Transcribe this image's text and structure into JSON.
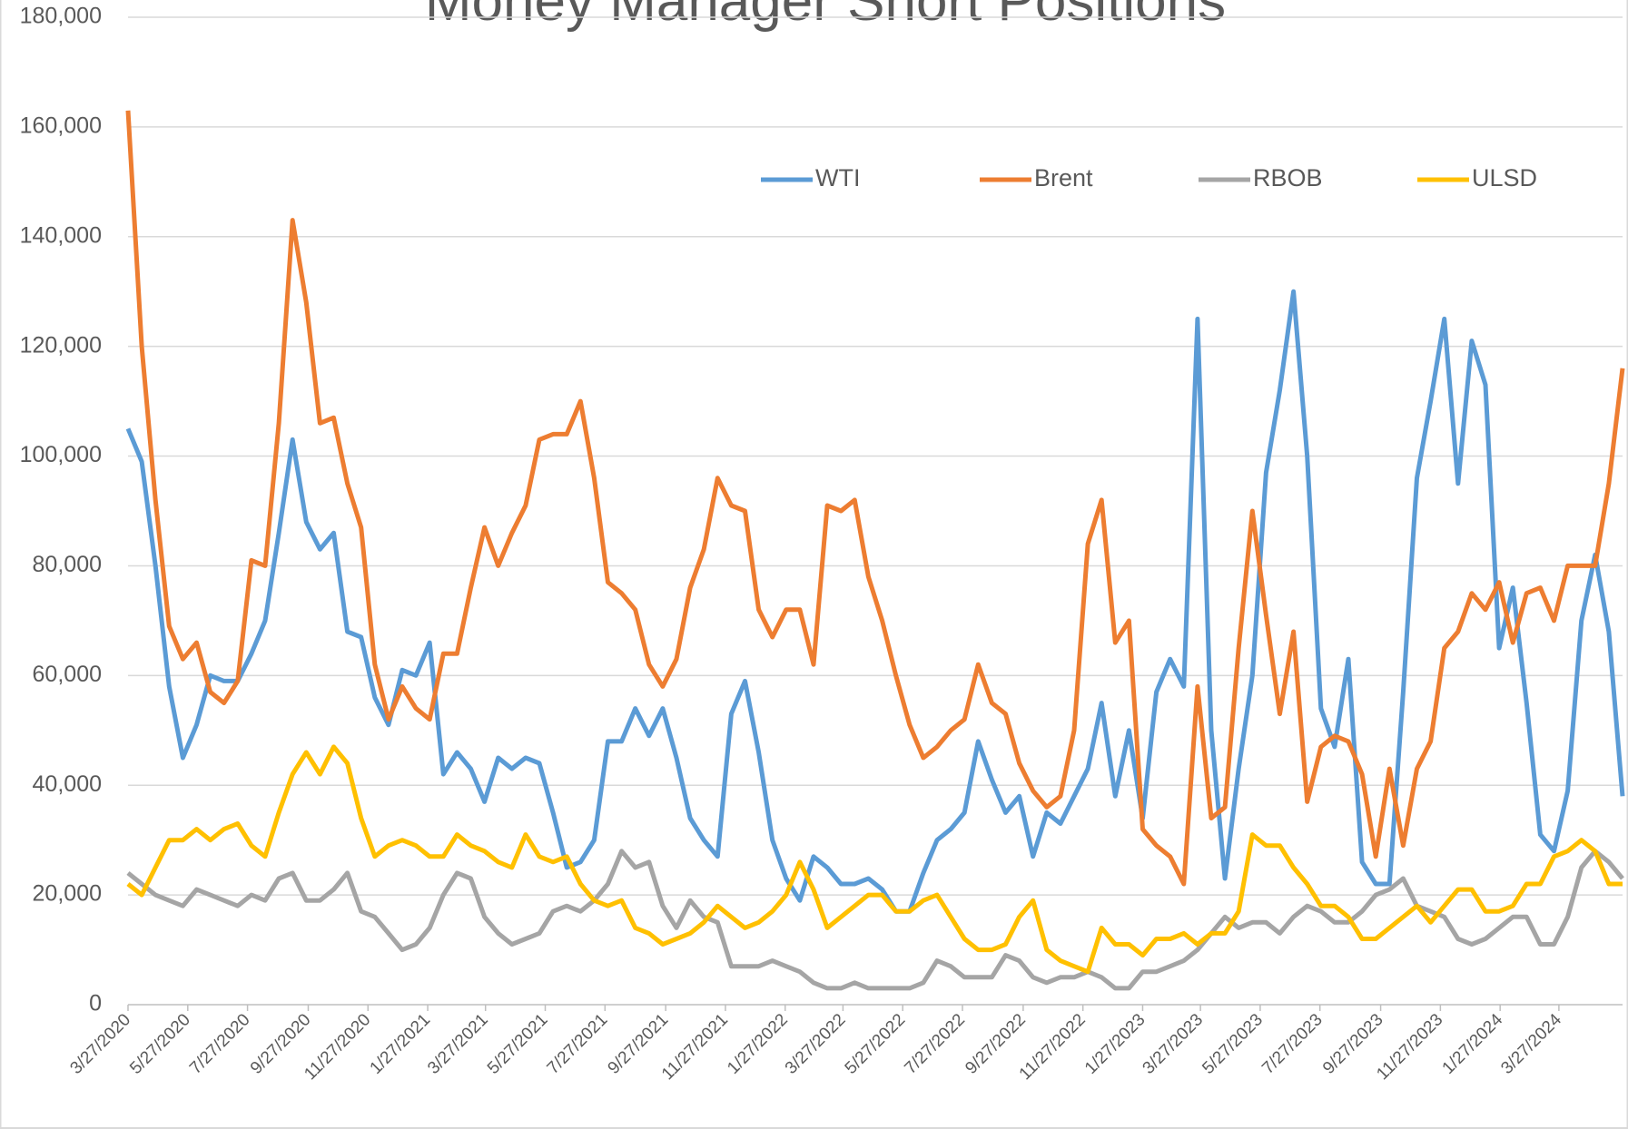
{
  "chart_data": {
    "type": "line",
    "title": "Money Manager Short Positions",
    "x": [
      "3/27/2020",
      "4/10/2020",
      "4/24/2020",
      "5/8/2020",
      "5/22/2020",
      "6/5/2020",
      "6/19/2020",
      "7/3/2020",
      "7/17/2020",
      "7/31/2020",
      "8/14/2020",
      "8/28/2020",
      "9/11/2020",
      "9/25/2020",
      "10/9/2020",
      "10/23/2020",
      "11/6/2020",
      "11/20/2020",
      "12/4/2020",
      "12/18/2020",
      "1/1/2021",
      "1/15/2021",
      "1/29/2021",
      "2/12/2021",
      "2/26/2021",
      "3/12/2021",
      "3/26/2021",
      "4/9/2021",
      "4/23/2021",
      "5/7/2021",
      "5/21/2021",
      "6/4/2021",
      "6/18/2021",
      "7/2/2021",
      "7/16/2021",
      "7/30/2021",
      "8/13/2021",
      "8/27/2021",
      "9/10/2021",
      "9/24/2021",
      "10/8/2021",
      "10/22/2021",
      "11/5/2021",
      "11/19/2021",
      "12/3/2021",
      "12/17/2021",
      "12/31/2021",
      "1/14/2022",
      "1/28/2022",
      "2/11/2022",
      "2/25/2022",
      "3/11/2022",
      "3/25/2022",
      "4/8/2022",
      "4/22/2022",
      "5/6/2022",
      "5/20/2022",
      "6/3/2022",
      "6/17/2022",
      "7/1/2022",
      "7/15/2022",
      "7/29/2022",
      "8/12/2022",
      "8/26/2022",
      "9/9/2022",
      "9/23/2022",
      "10/7/2022",
      "10/21/2022",
      "11/4/2022",
      "11/18/2022",
      "12/2/2022",
      "12/16/2022",
      "12/30/2022",
      "1/13/2023",
      "1/27/2023",
      "2/10/2023",
      "2/24/2023",
      "3/10/2023",
      "3/24/2023",
      "4/7/2023",
      "4/21/2023",
      "5/5/2023",
      "5/19/2023",
      "6/2/2023",
      "6/16/2023",
      "6/30/2023",
      "7/14/2023",
      "7/28/2023",
      "8/11/2023",
      "8/25/2023",
      "9/8/2023",
      "9/22/2023",
      "10/6/2023",
      "10/20/2023",
      "11/3/2023",
      "11/17/2023",
      "12/1/2023",
      "12/15/2023",
      "12/29/2023",
      "1/12/2024",
      "1/26/2024",
      "2/9/2024",
      "2/23/2024",
      "3/8/2024",
      "3/22/2024",
      "4/5/2024",
      "4/19/2024",
      "5/3/2024",
      "5/17/2024",
      "5/31/2024"
    ],
    "series": [
      {
        "name": "WTI",
        "color": "#5b9bd5",
        "values": [
          105000,
          99000,
          80000,
          58000,
          45000,
          51000,
          60000,
          59000,
          59000,
          64000,
          70000,
          86000,
          103000,
          88000,
          83000,
          86000,
          68000,
          67000,
          56000,
          51000,
          61000,
          60000,
          66000,
          42000,
          46000,
          43000,
          37000,
          45000,
          43000,
          45000,
          44000,
          35000,
          25000,
          26000,
          30000,
          48000,
          48000,
          54000,
          49000,
          54000,
          45000,
          34000,
          30000,
          27000,
          53000,
          59000,
          46000,
          30000,
          23000,
          19000,
          27000,
          25000,
          22000,
          22000,
          23000,
          21000,
          17000,
          17000,
          24000,
          30000,
          32000,
          35000,
          48000,
          41000,
          35000,
          38000,
          27000,
          35000,
          33000,
          38000,
          43000,
          55000,
          38000,
          50000,
          34000,
          57000,
          63000,
          58000,
          125000,
          50000,
          23000,
          43000,
          60000,
          97000,
          112000,
          130000,
          100000,
          54000,
          47000,
          63000,
          26000,
          22000,
          22000,
          57000,
          96000,
          110000,
          125000,
          95000,
          121000,
          113000,
          65000,
          76000,
          55000,
          31000,
          28000,
          39000,
          70000,
          82000,
          68000,
          38000
        ]
      },
      {
        "name": "Brent",
        "color": "#ed7d31",
        "values": [
          163000,
          120000,
          92000,
          69000,
          63000,
          66000,
          57000,
          55000,
          59000,
          81000,
          80000,
          106000,
          143000,
          128000,
          106000,
          107000,
          95000,
          87000,
          62000,
          52000,
          58000,
          54000,
          52000,
          64000,
          64000,
          76000,
          87000,
          80000,
          86000,
          91000,
          103000,
          104000,
          104000,
          110000,
          96000,
          77000,
          75000,
          72000,
          62000,
          58000,
          63000,
          76000,
          83000,
          96000,
          91000,
          90000,
          72000,
          67000,
          72000,
          72000,
          62000,
          91000,
          90000,
          92000,
          78000,
          70000,
          60000,
          51000,
          45000,
          47000,
          50000,
          52000,
          62000,
          55000,
          53000,
          44000,
          39000,
          36000,
          38000,
          50000,
          84000,
          92000,
          66000,
          70000,
          32000,
          29000,
          27000,
          22000,
          58000,
          34000,
          36000,
          65000,
          90000,
          71000,
          53000,
          68000,
          37000,
          47000,
          49000,
          48000,
          42000,
          27000,
          43000,
          29000,
          43000,
          48000,
          65000,
          68000,
          75000,
          72000,
          77000,
          66000,
          75000,
          76000,
          70000,
          80000,
          80000,
          80000,
          95000,
          116000
        ]
      },
      {
        "name": "RBOB",
        "color": "#a5a5a5",
        "values": [
          24000,
          22000,
          20000,
          19000,
          18000,
          21000,
          20000,
          19000,
          18000,
          20000,
          19000,
          23000,
          24000,
          19000,
          19000,
          21000,
          24000,
          17000,
          16000,
          13000,
          10000,
          11000,
          14000,
          20000,
          24000,
          23000,
          16000,
          13000,
          11000,
          12000,
          13000,
          17000,
          18000,
          17000,
          19000,
          22000,
          28000,
          25000,
          26000,
          18000,
          14000,
          19000,
          16000,
          15000,
          7000,
          7000,
          7000,
          8000,
          7000,
          6000,
          4000,
          3000,
          3000,
          4000,
          3000,
          3000,
          3000,
          3000,
          4000,
          8000,
          7000,
          5000,
          5000,
          5000,
          9000,
          8000,
          5000,
          4000,
          5000,
          5000,
          6000,
          5000,
          3000,
          3000,
          6000,
          6000,
          7000,
          8000,
          10000,
          13000,
          16000,
          14000,
          15000,
          15000,
          13000,
          16000,
          18000,
          17000,
          15000,
          15000,
          17000,
          20000,
          21000,
          23000,
          18000,
          17000,
          16000,
          12000,
          11000,
          12000,
          14000,
          16000,
          16000,
          11000,
          11000,
          16000,
          25000,
          28000,
          26000,
          23000
        ]
      },
      {
        "name": "ULSD",
        "color": "#ffc000",
        "values": [
          22000,
          20000,
          25000,
          30000,
          30000,
          32000,
          30000,
          32000,
          33000,
          29000,
          27000,
          35000,
          42000,
          46000,
          42000,
          47000,
          44000,
          34000,
          27000,
          29000,
          30000,
          29000,
          27000,
          27000,
          31000,
          29000,
          28000,
          26000,
          25000,
          31000,
          27000,
          26000,
          27000,
          22000,
          19000,
          18000,
          19000,
          14000,
          13000,
          11000,
          12000,
          13000,
          15000,
          18000,
          16000,
          14000,
          15000,
          17000,
          20000,
          26000,
          21000,
          14000,
          16000,
          18000,
          20000,
          20000,
          17000,
          17000,
          19000,
          20000,
          16000,
          12000,
          10000,
          10000,
          11000,
          16000,
          19000,
          10000,
          8000,
          7000,
          6000,
          14000,
          11000,
          11000,
          9000,
          12000,
          12000,
          13000,
          11000,
          13000,
          13000,
          17000,
          31000,
          29000,
          29000,
          25000,
          22000,
          18000,
          18000,
          16000,
          12000,
          12000,
          14000,
          16000,
          18000,
          15000,
          18000,
          21000,
          21000,
          17000,
          17000,
          18000,
          22000,
          22000,
          27000,
          28000,
          30000,
          28000,
          22000,
          22000
        ]
      }
    ],
    "xlim": [
      "3/27/2020",
      "5/31/2024"
    ],
    "xticks": [
      "3/27/2020",
      "5/27/2020",
      "7/27/2020",
      "9/27/2020",
      "11/27/2020",
      "1/27/2021",
      "3/27/2021",
      "5/27/2021",
      "7/27/2021",
      "9/27/2021",
      "11/27/2021",
      "1/27/2022",
      "3/27/2022",
      "5/27/2022",
      "7/27/2022",
      "9/27/2022",
      "11/27/2022",
      "1/27/2023",
      "3/27/2023",
      "5/27/2023",
      "7/27/2023",
      "9/27/2023",
      "11/27/2023",
      "1/27/2024",
      "3/27/2024"
    ],
    "ylim": [
      0,
      180000
    ],
    "yticks": [
      0,
      {
        "value": 20000,
        "label": "20,000"
      },
      {
        "value": 40000,
        "label": "40,000"
      },
      {
        "value": 60000,
        "label": "60,000"
      },
      {
        "value": 80000,
        "label": "80,000"
      },
      {
        "value": 100000,
        "label": "100,000"
      },
      {
        "value": 120000,
        "label": "120,000"
      },
      {
        "value": 140000,
        "label": "140,000"
      },
      {
        "value": 160000,
        "label": "160,000"
      },
      {
        "value": 180000,
        "label": "180,000"
      }
    ],
    "grid": true,
    "legend": "upper right"
  }
}
